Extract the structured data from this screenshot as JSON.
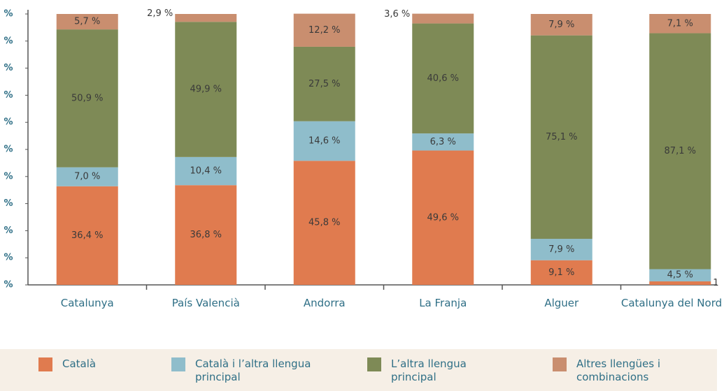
{
  "chart_data": {
    "type": "stacked_bar",
    "categories": [
      "Catalunya",
      "País Valencià",
      "Andorra",
      "La Franja",
      "Alguer",
      "Catalunya del Nord"
    ],
    "series": [
      {
        "name": "Català",
        "color": "#e07b4f",
        "values": [
          36.4,
          36.8,
          45.8,
          49.6,
          9.1,
          1.3
        ],
        "value_labels": [
          "36,4 %",
          "36,8 %",
          "45,8 %",
          "49,6 %",
          "9,1 %",
          "1"
        ]
      },
      {
        "name": "Català i l’altra llengua principal",
        "color": "#8fbdcb",
        "values": [
          7.0,
          10.4,
          14.6,
          6.3,
          7.9,
          4.5
        ],
        "value_labels": [
          "7,0 %",
          "10,4 %",
          "14,6 %",
          "6,3 %",
          "7,9 %",
          "4,5 %"
        ]
      },
      {
        "name": "L’altra llengua principal",
        "color": "#7e8a56",
        "values": [
          50.9,
          49.9,
          27.5,
          40.6,
          75.1,
          87.1
        ],
        "value_labels": [
          "50,9 %",
          "49,9 %",
          "27,5 %",
          "40,6 %",
          "75,1 %",
          "87,1 %"
        ]
      },
      {
        "name": "Altres llengües i combinacions",
        "color": "#c98e6f",
        "values": [
          5.7,
          2.9,
          12.2,
          3.6,
          7.9,
          7.1
        ],
        "value_labels": [
          "5,7 %",
          "2,9 %",
          "12,2 %",
          "3,6 %",
          "7,9 %",
          "7,1 %"
        ]
      }
    ],
    "ylim": [
      0,
      100
    ],
    "yticks": [
      {
        "value": 0,
        "label": "%"
      },
      {
        "value": 10,
        "label": "%"
      },
      {
        "value": 20,
        "label": "%"
      },
      {
        "value": 30,
        "label": "%"
      },
      {
        "value": 40,
        "label": "%"
      },
      {
        "value": 50,
        "label": "%"
      },
      {
        "value": 60,
        "label": "%"
      },
      {
        "value": 70,
        "label": "%"
      },
      {
        "value": 80,
        "label": "%"
      },
      {
        "value": 90,
        "label": "%"
      },
      {
        "value": 100,
        "label": "%"
      }
    ],
    "grid": false,
    "legend": "bottom"
  }
}
